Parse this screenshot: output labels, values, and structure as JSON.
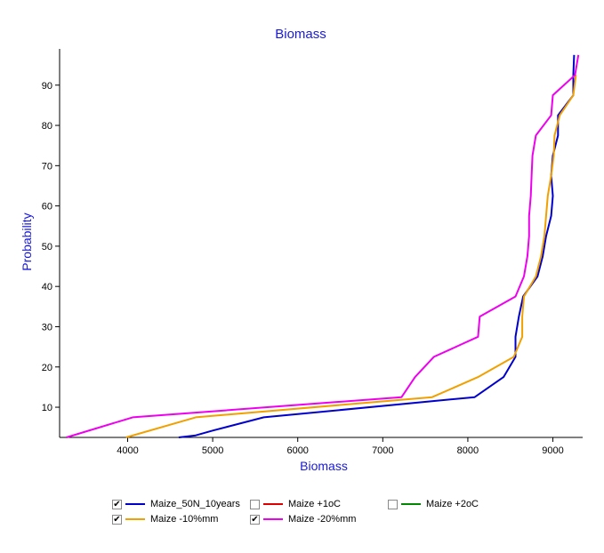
{
  "chart_data": {
    "type": "line",
    "title": "Biomass",
    "xlabel": "Biomass",
    "ylabel": "Probability",
    "xlim": [
      3200,
      9350
    ],
    "ylim": [
      2.5,
      99
    ],
    "xticks": [
      4000,
      5000,
      6000,
      7000,
      8000,
      9000
    ],
    "yticks": [
      10,
      20,
      30,
      40,
      50,
      60,
      70,
      80,
      90
    ],
    "title_color": "#1a1ad6",
    "series": [
      {
        "name": "Maize_50N_10years",
        "color": "#0000cc",
        "checked": true,
        "points": [
          [
            4600,
            2.5
          ],
          [
            4800,
            3
          ],
          [
            5000,
            4.2
          ],
          [
            5600,
            7.5
          ],
          [
            8080,
            12.5
          ],
          [
            8420,
            17.5
          ],
          [
            8560,
            22.5
          ],
          [
            8560,
            27.5
          ],
          [
            8600,
            32.5
          ],
          [
            8650,
            37.5
          ],
          [
            8820,
            42.5
          ],
          [
            8880,
            47.5
          ],
          [
            8920,
            52.5
          ],
          [
            8980,
            57.5
          ],
          [
            9000,
            62.5
          ],
          [
            8980,
            67.5
          ],
          [
            9000,
            72.5
          ],
          [
            9060,
            77.5
          ],
          [
            9060,
            82.5
          ],
          [
            9240,
            87.5
          ],
          [
            9240,
            92.5
          ],
          [
            9250,
            97.5
          ]
        ]
      },
      {
        "name": "Maize +1oC",
        "color": "#dd0000",
        "checked": false,
        "points": []
      },
      {
        "name": "Maize +2oC",
        "color": "#008800",
        "checked": false,
        "points": []
      },
      {
        "name": "Maize -10%mm",
        "color": "#f0a000",
        "checked": true,
        "points": [
          [
            3980,
            2.5
          ],
          [
            4800,
            7.5
          ],
          [
            7580,
            12.5
          ],
          [
            8120,
            17.5
          ],
          [
            8540,
            22.5
          ],
          [
            8640,
            27.5
          ],
          [
            8640,
            32.5
          ],
          [
            8660,
            37.5
          ],
          [
            8800,
            42.5
          ],
          [
            8860,
            47.5
          ],
          [
            8900,
            52.5
          ],
          [
            8920,
            57.5
          ],
          [
            8940,
            62.5
          ],
          [
            8980,
            67.5
          ],
          [
            9010,
            72.5
          ],
          [
            9020,
            77.5
          ],
          [
            9080,
            82.5
          ],
          [
            9240,
            87.5
          ],
          [
            9270,
            92.5
          ]
        ]
      },
      {
        "name": "Maize -20%mm",
        "color": "#ee00ee",
        "checked": true,
        "points": [
          [
            3280,
            2.5
          ],
          [
            4060,
            7.5
          ],
          [
            7220,
            12.5
          ],
          [
            7380,
            17.5
          ],
          [
            7600,
            22.5
          ],
          [
            8120,
            27.5
          ],
          [
            8140,
            32.5
          ],
          [
            8560,
            37.5
          ],
          [
            8660,
            42.5
          ],
          [
            8700,
            47.5
          ],
          [
            8720,
            52.5
          ],
          [
            8720,
            57.5
          ],
          [
            8740,
            62.5
          ],
          [
            8750,
            67.5
          ],
          [
            8760,
            72.5
          ],
          [
            8800,
            77.5
          ],
          [
            8980,
            82.5
          ],
          [
            9000,
            87.5
          ],
          [
            9260,
            92.5
          ],
          [
            9300,
            97.5
          ]
        ]
      }
    ]
  }
}
